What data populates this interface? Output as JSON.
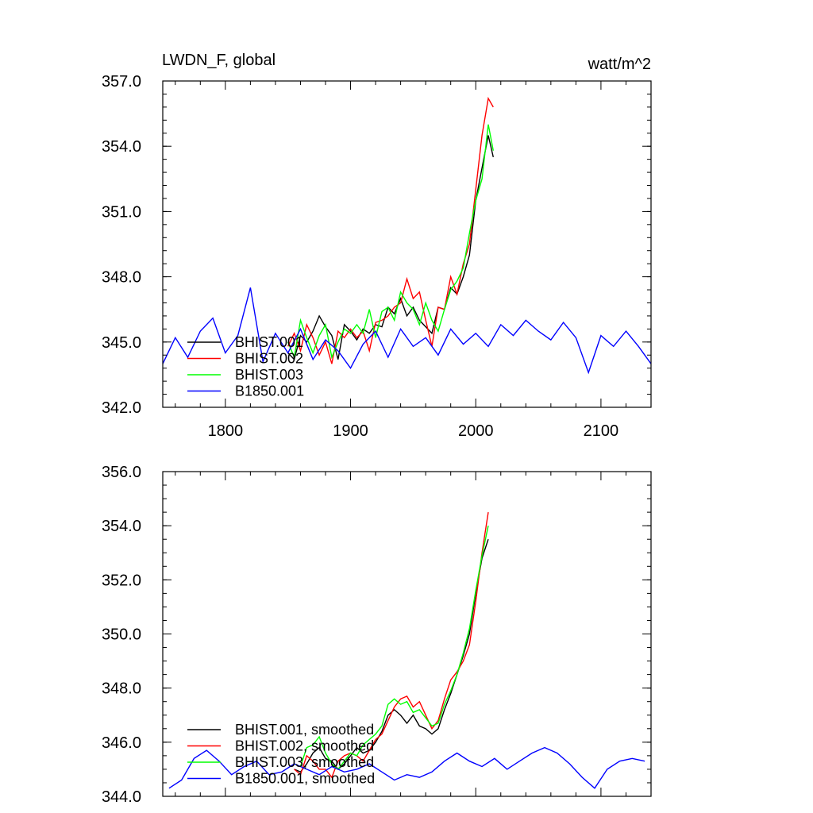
{
  "chart_data": [
    {
      "type": "line",
      "title": "LWDN_F, global",
      "units": "watt/m^2",
      "xlim": [
        1750,
        2140
      ],
      "ylim": [
        342.0,
        357.0
      ],
      "xticks": [
        1800,
        1900,
        2000,
        2100
      ],
      "xtick_labels": [
        "1800",
        "1900",
        "2000",
        "2100"
      ],
      "yticks": [
        342.0,
        345.0,
        348.0,
        351.0,
        354.0,
        357.0
      ],
      "ytick_labels": [
        "342.0",
        "345.0",
        "348.0",
        "351.0",
        "354.0",
        "357.0"
      ],
      "legend_position": "lower-left",
      "series": [
        {
          "name": "BHIST.001",
          "color": "#000000",
          "x": [
            1850,
            1855,
            1860,
            1865,
            1870,
            1875,
            1880,
            1885,
            1890,
            1895,
            1900,
            1905,
            1910,
            1915,
            1920,
            1925,
            1930,
            1935,
            1940,
            1945,
            1950,
            1955,
            1960,
            1965,
            1970,
            1975,
            1980,
            1985,
            1990,
            1995,
            2000,
            2005,
            2010,
            2014
          ],
          "y": [
            344.5,
            344.2,
            345.3,
            345.0,
            345.5,
            346.2,
            345.7,
            345.3,
            344.2,
            345.8,
            345.5,
            345.1,
            345.6,
            345.4,
            345.8,
            345.7,
            346.6,
            346.3,
            347.0,
            346.2,
            346.6,
            346.0,
            345.7,
            345.4,
            346.6,
            346.5,
            347.5,
            347.2,
            348.0,
            349.0,
            351.5,
            353.0,
            354.5,
            353.5
          ]
        },
        {
          "name": "BHIST.002",
          "color": "#ff0000",
          "x": [
            1850,
            1855,
            1860,
            1865,
            1870,
            1875,
            1880,
            1885,
            1890,
            1895,
            1900,
            1905,
            1910,
            1915,
            1920,
            1925,
            1930,
            1935,
            1940,
            1945,
            1950,
            1955,
            1960,
            1965,
            1970,
            1975,
            1980,
            1985,
            1990,
            1995,
            2000,
            2005,
            2010,
            2014
          ],
          "y": [
            344.8,
            345.4,
            344.6,
            345.8,
            345.2,
            344.4,
            345.0,
            344.0,
            345.5,
            345.2,
            345.6,
            345.2,
            345.5,
            344.6,
            345.9,
            346.0,
            346.2,
            346.6,
            346.8,
            347.9,
            347.0,
            347.3,
            346.0,
            344.8,
            346.6,
            346.5,
            348.0,
            347.2,
            348.6,
            349.5,
            352.0,
            354.5,
            356.2,
            355.8
          ]
        },
        {
          "name": "BHIST.003",
          "color": "#00ff00",
          "x": [
            1850,
            1855,
            1860,
            1865,
            1870,
            1875,
            1880,
            1885,
            1890,
            1895,
            1900,
            1905,
            1910,
            1915,
            1920,
            1925,
            1930,
            1935,
            1940,
            1945,
            1950,
            1955,
            1960,
            1965,
            1970,
            1975,
            1980,
            1985,
            1990,
            1995,
            2000,
            2005,
            2010,
            2014
          ],
          "y": [
            345.0,
            344.3,
            346.0,
            345.2,
            344.5,
            345.3,
            345.8,
            344.3,
            345.0,
            345.6,
            345.4,
            345.8,
            345.4,
            346.5,
            345.2,
            346.4,
            346.6,
            346.0,
            347.3,
            346.8,
            346.5,
            345.8,
            346.8,
            346.0,
            345.5,
            346.5,
            347.4,
            347.8,
            348.4,
            350.0,
            351.5,
            352.5,
            355.0,
            353.8
          ]
        },
        {
          "name": "B1850.001",
          "color": "#0000ff",
          "x": [
            1750,
            1760,
            1770,
            1780,
            1790,
            1800,
            1810,
            1820,
            1830,
            1840,
            1850,
            1860,
            1870,
            1880,
            1890,
            1900,
            1910,
            1920,
            1930,
            1940,
            1950,
            1960,
            1970,
            1980,
            1990,
            2000,
            2010,
            2020,
            2030,
            2040,
            2050,
            2060,
            2070,
            2080,
            2090,
            2100,
            2110,
            2120,
            2130,
            2140
          ],
          "y": [
            344.0,
            345.2,
            344.3,
            345.5,
            346.1,
            344.5,
            345.3,
            347.5,
            344.1,
            345.4,
            344.5,
            345.6,
            344.2,
            345.1,
            344.6,
            343.8,
            344.9,
            345.5,
            344.3,
            345.6,
            344.8,
            345.2,
            344.4,
            345.6,
            344.9,
            345.4,
            344.8,
            345.8,
            345.3,
            346.0,
            345.5,
            345.1,
            345.9,
            345.2,
            343.6,
            345.3,
            344.8,
            345.5,
            344.8,
            344.0
          ]
        }
      ]
    },
    {
      "type": "line",
      "xlim": [
        1750,
        2140
      ],
      "ylim": [
        344.0,
        356.0
      ],
      "xticks": [
        1800,
        1900,
        2000,
        2100
      ],
      "yticks": [
        344.0,
        346.0,
        348.0,
        350.0,
        352.0,
        354.0,
        356.0
      ],
      "ytick_labels": [
        "344.0",
        "346.0",
        "348.0",
        "350.0",
        "352.0",
        "354.0",
        "356.0"
      ],
      "legend_position": "lower-left",
      "series": [
        {
          "name": "BHIST.001, smoothed",
          "color": "#000000",
          "x": [
            1855,
            1860,
            1865,
            1870,
            1875,
            1880,
            1885,
            1890,
            1895,
            1900,
            1905,
            1910,
            1915,
            1920,
            1925,
            1930,
            1935,
            1940,
            1945,
            1950,
            1955,
            1960,
            1965,
            1970,
            1975,
            1980,
            1985,
            1990,
            1995,
            2000,
            2005,
            2010
          ],
          "y": [
            345.0,
            344.9,
            345.2,
            345.6,
            345.8,
            345.4,
            345.3,
            345.0,
            345.2,
            345.5,
            345.8,
            345.6,
            345.7,
            346.0,
            346.4,
            347.0,
            347.2,
            347.0,
            346.7,
            347.0,
            346.6,
            346.5,
            346.3,
            346.5,
            347.2,
            347.8,
            348.5,
            349.2,
            350.0,
            351.5,
            352.8,
            353.5
          ]
        },
        {
          "name": "BHIST.002, smoothed",
          "color": "#ff0000",
          "x": [
            1855,
            1860,
            1865,
            1870,
            1875,
            1880,
            1885,
            1890,
            1895,
            1900,
            1905,
            1910,
            1915,
            1920,
            1925,
            1930,
            1935,
            1940,
            1945,
            1950,
            1955,
            1960,
            1965,
            1970,
            1975,
            1980,
            1985,
            1990,
            1995,
            2000,
            2005,
            2010
          ],
          "y": [
            345.0,
            344.8,
            345.5,
            345.3,
            345.0,
            345.0,
            344.7,
            345.3,
            345.5,
            345.6,
            345.5,
            345.3,
            345.7,
            346.1,
            346.3,
            346.8,
            347.3,
            347.6,
            347.7,
            347.3,
            347.5,
            347.0,
            346.5,
            346.8,
            347.6,
            348.3,
            348.6,
            349.0,
            349.6,
            351.2,
            353.0,
            354.5
          ]
        },
        {
          "name": "BHIST.003, smoothed",
          "color": "#00ff00",
          "x": [
            1855,
            1860,
            1865,
            1870,
            1875,
            1880,
            1885,
            1890,
            1895,
            1900,
            1905,
            1910,
            1915,
            1920,
            1925,
            1930,
            1935,
            1940,
            1945,
            1950,
            1955,
            1960,
            1965,
            1970,
            1975,
            1980,
            1985,
            1990,
            1995,
            2000,
            2005,
            2010
          ],
          "y": [
            345.2,
            345.1,
            345.8,
            345.9,
            346.2,
            345.6,
            345.2,
            345.0,
            345.3,
            345.6,
            345.5,
            345.9,
            346.1,
            346.3,
            346.6,
            347.4,
            347.6,
            347.4,
            347.5,
            347.1,
            347.2,
            346.9,
            346.6,
            346.7,
            347.4,
            347.9,
            348.5,
            349.3,
            350.2,
            351.6,
            352.9,
            354.0
          ]
        },
        {
          "name": "B1850.001, smoothed",
          "color": "#0000ff",
          "x": [
            1755,
            1765,
            1775,
            1785,
            1795,
            1805,
            1815,
            1825,
            1835,
            1845,
            1855,
            1865,
            1875,
            1885,
            1895,
            1905,
            1915,
            1925,
            1935,
            1945,
            1955,
            1965,
            1975,
            1985,
            1995,
            2005,
            2015,
            2025,
            2035,
            2045,
            2055,
            2065,
            2075,
            2085,
            2095,
            2105,
            2115,
            2125,
            2135
          ],
          "y": [
            344.3,
            344.6,
            345.4,
            345.7,
            345.3,
            344.8,
            345.1,
            345.3,
            344.8,
            344.9,
            345.2,
            345.0,
            344.8,
            345.1,
            344.9,
            345.0,
            345.2,
            344.9,
            344.6,
            344.8,
            344.7,
            344.9,
            345.3,
            345.6,
            345.3,
            345.1,
            345.4,
            345.0,
            345.3,
            345.6,
            345.8,
            345.6,
            345.2,
            344.7,
            344.3,
            345.0,
            345.3,
            345.4,
            345.3
          ]
        }
      ]
    }
  ]
}
